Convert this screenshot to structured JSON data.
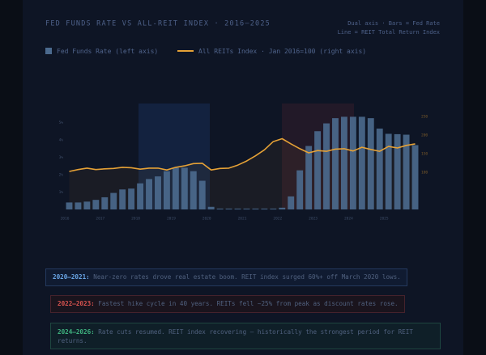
{
  "chart_data": {
    "type": "bar-line",
    "title": "FED FUNDS RATE VS ALL-REIT INDEX · 2016–2025",
    "note": [
      "Dual axis · Bars = Fed Rate",
      "Line = REIT Total Return Index"
    ],
    "categories": [
      "2016",
      null,
      null,
      null,
      "2017",
      null,
      null,
      null,
      "2018",
      null,
      null,
      null,
      "2019",
      null,
      null,
      null,
      "2020",
      null,
      null,
      null,
      "2021",
      null,
      null,
      null,
      "2022",
      null,
      null,
      null,
      "2023",
      null,
      null,
      null,
      "2024",
      null,
      null,
      null,
      "2025",
      null,
      null,
      null
    ],
    "series": [
      {
        "name": "Fed Funds Rate (left axis)",
        "color": "#4b6a8e",
        "kind": "bar",
        "values": [
          0.4,
          0.4,
          0.45,
          0.55,
          0.7,
          0.95,
          1.15,
          1.2,
          1.5,
          1.75,
          1.9,
          2.2,
          2.4,
          2.4,
          2.2,
          1.65,
          0.15,
          0.05,
          0.05,
          0.05,
          0.05,
          0.05,
          0.05,
          0.05,
          0.1,
          0.75,
          2.25,
          3.65,
          4.5,
          4.95,
          5.25,
          5.33,
          5.33,
          5.33,
          5.25,
          4.65,
          4.35,
          4.33,
          4.3,
          3.7
        ]
      },
      {
        "name": "All REITs Index · Jan 2016=100 (right axis)",
        "color": "#e5a136",
        "kind": "line",
        "axis": "y2",
        "values": [
          102,
          107,
          111,
          107,
          109,
          110,
          113,
          112,
          108,
          111,
          111,
          106,
          113,
          117,
          123,
          124,
          106,
          110,
          111,
          119,
          130,
          144,
          160,
          182,
          190,
          176,
          163,
          152,
          158,
          156,
          162,
          163,
          157,
          167,
          161,
          156,
          169,
          165,
          172,
          176
        ]
      }
    ],
    "ylim": [
      0,
      6
    ],
    "yticks": [
      {
        "value": 1,
        "label": "1%"
      },
      {
        "value": 2,
        "label": "2%"
      },
      {
        "value": 3,
        "label": "3%"
      },
      {
        "value": 4,
        "label": "4%"
      },
      {
        "value": 5,
        "label": "5%"
      }
    ],
    "y2lim": [
      0,
      280
    ],
    "y2ticks": [
      100,
      150,
      200,
      250
    ],
    "grid": false,
    "annotations": [
      {
        "label": "2020–2021:",
        "text": " Near-zero rates drove real estate boom. REIT index surged 60%+ off March 2020 lows.",
        "color": "#6aa6e6"
      },
      {
        "label": "2022–2023:",
        "text": " Fastest hike cycle in 40 years. REITs fell ~25% from peak as discount rates rose.",
        "color": "#d9534f"
      },
      {
        "label": "2024–2026:",
        "text": " Rate cuts resumed. REIT index recovering — historically the strongest period for REIT returns.",
        "color": "#3fb27f"
      }
    ]
  }
}
